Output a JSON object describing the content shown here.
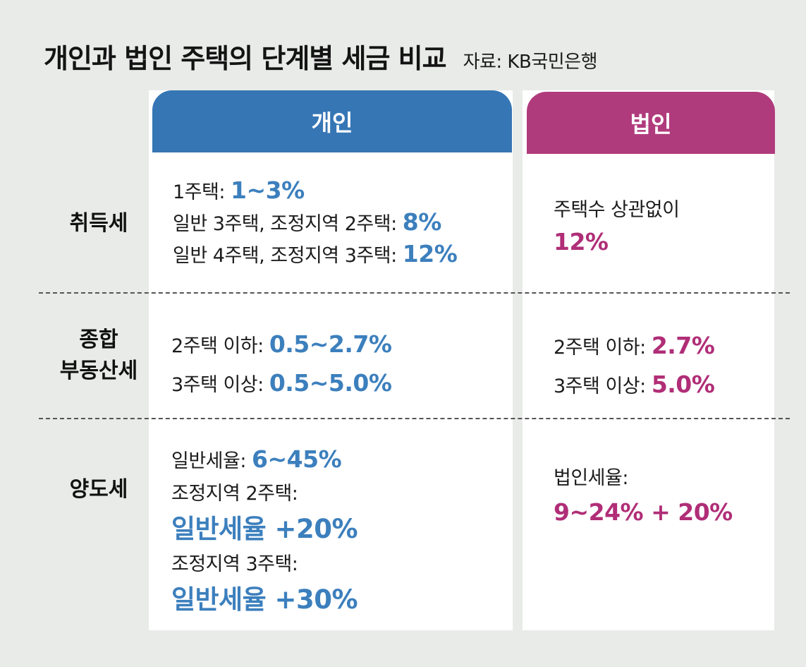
{
  "title": "개인과 법인 주택의 단계별 세금 비교",
  "source": "자료: KB국민은행",
  "columns": {
    "individual": "개인",
    "corporate": "법인"
  },
  "rows": {
    "acquisition": {
      "label": "취득세",
      "individual": [
        {
          "text": "1주택: ",
          "value": "1~3%"
        },
        {
          "text": "일반 3주택, 조정지역 2주택: ",
          "value": "8%"
        },
        {
          "text": "일반 4주택, 조정지역 3주택: ",
          "value": "12%"
        }
      ],
      "corporate": {
        "text": "주택수 상관없이",
        "value": "12%"
      }
    },
    "comprehensive": {
      "label_1": "종합",
      "label_2": "부동산세",
      "individual": [
        {
          "text": "2주택 이하: ",
          "value": "0.5~2.7%"
        },
        {
          "text": "3주택 이상: ",
          "value": "0.5~5.0%"
        }
      ],
      "corporate": [
        {
          "text": "2주택 이하: ",
          "value": "2.7%"
        },
        {
          "text": "3주택 이상: ",
          "value": "5.0%"
        }
      ]
    },
    "transfer": {
      "label": "양도세",
      "individual": {
        "general_text": "일반세율: ",
        "general_value": "6~45%",
        "adj2_text": "조정지역 2주택:",
        "adj2_value": "일반세율 +20%",
        "adj3_text": "조정지역 3주택:",
        "adj3_value": "일반세율 +30%"
      },
      "corporate": {
        "text": "법인세율:",
        "value": "9~24% + 20%"
      }
    }
  },
  "colors": {
    "individual": "#3676b5",
    "corporate": "#b03b7c"
  }
}
